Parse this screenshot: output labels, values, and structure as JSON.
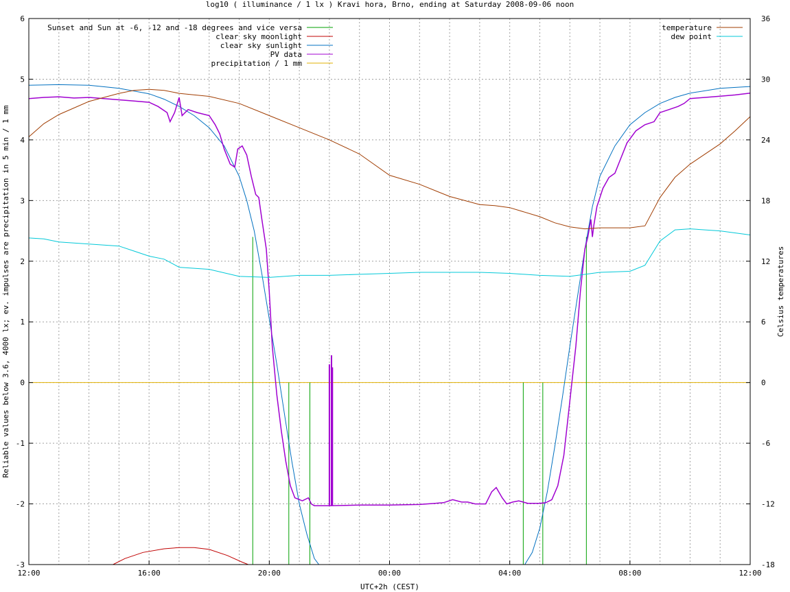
{
  "chart_data": {
    "type": "line",
    "title": "log10 ( illuminance / 1 lx ) Kravi hora, Brno, ending at Saturday 2008-09-06 noon",
    "xlabel": "UTC+2h (CEST)",
    "ylabel": "Reliable values below 3.6, 4000 lx; ev. impulses are precipitation in 5 min / 1 mm",
    "y2label": "Celsius temperatures",
    "x_unit": "hours since 12:00",
    "xlim": [
      0,
      24
    ],
    "ylim": [
      -3,
      6
    ],
    "y2lim": [
      -18,
      36
    ],
    "x_ticks": [
      {
        "x": 0,
        "label": "12:00"
      },
      {
        "x": 4,
        "label": "16:00"
      },
      {
        "x": 8,
        "label": "20:00"
      },
      {
        "x": 12,
        "label": "00:00"
      },
      {
        "x": 16,
        "label": "04:00"
      },
      {
        "x": 20,
        "label": "08:00"
      },
      {
        "x": 24,
        "label": "12:00"
      }
    ],
    "y_ticks": [
      "-3",
      "-2",
      "-1",
      "0",
      "1",
      "2",
      "3",
      "4",
      "5",
      "6"
    ],
    "y2_ticks": [
      "-18",
      "-12",
      "-6",
      "0",
      "6",
      "12",
      "18",
      "24",
      "30",
      "36"
    ],
    "grid": true,
    "legend_left": [
      {
        "label": "Sunset and Sun at -6, -12 and -18 degrees and vice versa",
        "color": "#00a000"
      },
      {
        "label": "clear sky moonlight",
        "color": "#c00000"
      },
      {
        "label": "clear sky sunlight",
        "color": "#0070c0"
      },
      {
        "label": "PV data",
        "color": "#a000d0"
      },
      {
        "label": "precipitation / 1 mm",
        "color": "#e0b000"
      }
    ],
    "legend_right": [
      {
        "label": "temperature",
        "color": "#a03c00"
      },
      {
        "label": "dew point",
        "color": "#00c8d8"
      }
    ],
    "series": [
      {
        "name": "clear sky sunlight",
        "axis": "y",
        "color": "#0070c0",
        "points": [
          [
            0,
            4.9
          ],
          [
            1,
            4.91
          ],
          [
            2,
            4.9
          ],
          [
            3,
            4.85
          ],
          [
            4,
            4.76
          ],
          [
            4.5,
            4.67
          ],
          [
            5,
            4.55
          ],
          [
            5.5,
            4.4
          ],
          [
            6,
            4.2
          ],
          [
            6.5,
            3.9
          ],
          [
            7,
            3.4
          ],
          [
            7.25,
            3.0
          ],
          [
            7.5,
            2.5
          ],
          [
            7.75,
            1.8
          ],
          [
            8,
            1.05
          ],
          [
            8.25,
            0.3
          ],
          [
            8.5,
            -0.5
          ],
          [
            8.75,
            -1.3
          ],
          [
            9,
            -2.0
          ],
          [
            9.25,
            -2.5
          ],
          [
            9.5,
            -2.9
          ],
          [
            9.65,
            -3.0
          ],
          [
            16.5,
            -3.0
          ],
          [
            16.75,
            -2.8
          ],
          [
            17,
            -2.4
          ],
          [
            17.25,
            -1.8
          ],
          [
            17.5,
            -1.05
          ],
          [
            17.75,
            -0.25
          ],
          [
            18,
            0.6
          ],
          [
            18.25,
            1.4
          ],
          [
            18.5,
            2.2
          ],
          [
            18.75,
            2.9
          ],
          [
            19,
            3.4
          ],
          [
            19.5,
            3.9
          ],
          [
            20,
            4.25
          ],
          [
            20.5,
            4.45
          ],
          [
            21,
            4.6
          ],
          [
            21.5,
            4.7
          ],
          [
            22,
            4.77
          ],
          [
            23,
            4.85
          ],
          [
            24,
            4.88
          ]
        ]
      },
      {
        "name": "clear sky moonlight",
        "axis": "y",
        "color": "#c00000",
        "points": [
          [
            2.8,
            -3.0
          ],
          [
            3.2,
            -2.9
          ],
          [
            3.8,
            -2.8
          ],
          [
            4.5,
            -2.74
          ],
          [
            5,
            -2.72
          ],
          [
            5.5,
            -2.72
          ],
          [
            6,
            -2.75
          ],
          [
            6.6,
            -2.85
          ],
          [
            7.1,
            -2.96
          ],
          [
            7.3,
            -3.0
          ]
        ]
      },
      {
        "name": "PV data",
        "axis": "y",
        "color": "#a000d0",
        "points": [
          [
            0,
            4.68
          ],
          [
            0.5,
            4.7
          ],
          [
            1,
            4.71
          ],
          [
            1.5,
            4.69
          ],
          [
            2,
            4.7
          ],
          [
            2.5,
            4.68
          ],
          [
            3,
            4.66
          ],
          [
            3.5,
            4.64
          ],
          [
            4,
            4.62
          ],
          [
            4.3,
            4.55
          ],
          [
            4.6,
            4.45
          ],
          [
            4.7,
            4.3
          ],
          [
            4.85,
            4.45
          ],
          [
            5,
            4.7
          ],
          [
            5.1,
            4.4
          ],
          [
            5.3,
            4.5
          ],
          [
            5.6,
            4.45
          ],
          [
            6,
            4.4
          ],
          [
            6.2,
            4.25
          ],
          [
            6.35,
            4.1
          ],
          [
            6.5,
            3.85
          ],
          [
            6.7,
            3.6
          ],
          [
            6.85,
            3.55
          ],
          [
            6.95,
            3.85
          ],
          [
            7.1,
            3.9
          ],
          [
            7.25,
            3.75
          ],
          [
            7.4,
            3.4
          ],
          [
            7.55,
            3.1
          ],
          [
            7.65,
            3.05
          ],
          [
            7.75,
            2.7
          ],
          [
            7.9,
            2.2
          ],
          [
            8,
            1.5
          ],
          [
            8.1,
            0.6
          ],
          [
            8.25,
            -0.2
          ],
          [
            8.4,
            -0.8
          ],
          [
            8.55,
            -1.3
          ],
          [
            8.7,
            -1.7
          ],
          [
            8.85,
            -1.9
          ],
          [
            9.1,
            -1.95
          ],
          [
            9.3,
            -1.9
          ],
          [
            9.4,
            -2.0
          ],
          [
            9.5,
            -2.03
          ],
          [
            10,
            -2.03
          ],
          [
            11,
            -2.02
          ],
          [
            12,
            -2.02
          ],
          [
            13,
            -2.01
          ],
          [
            13.8,
            -1.98
          ],
          [
            14.1,
            -1.93
          ],
          [
            14.4,
            -1.97
          ],
          [
            14.6,
            -1.97
          ],
          [
            14.85,
            -2.0
          ],
          [
            15.2,
            -2.0
          ],
          [
            15.4,
            -1.8
          ],
          [
            15.55,
            -1.73
          ],
          [
            15.75,
            -1.9
          ],
          [
            15.9,
            -2.0
          ],
          [
            16.1,
            -1.97
          ],
          [
            16.3,
            -1.95
          ],
          [
            16.6,
            -1.99
          ],
          [
            17,
            -1.99
          ],
          [
            17.2,
            -1.98
          ],
          [
            17.4,
            -1.93
          ],
          [
            17.6,
            -1.7
          ],
          [
            17.8,
            -1.2
          ],
          [
            18,
            -0.3
          ],
          [
            18.2,
            0.6
          ],
          [
            18.35,
            1.5
          ],
          [
            18.5,
            2.2
          ],
          [
            18.6,
            2.4
          ],
          [
            18.7,
            2.69
          ],
          [
            18.75,
            2.4
          ],
          [
            18.8,
            2.6
          ],
          [
            18.9,
            2.9
          ],
          [
            19.1,
            3.2
          ],
          [
            19.3,
            3.38
          ],
          [
            19.5,
            3.45
          ],
          [
            19.7,
            3.7
          ],
          [
            19.9,
            3.95
          ],
          [
            20.2,
            4.15
          ],
          [
            20.5,
            4.25
          ],
          [
            20.8,
            4.3
          ],
          [
            21,
            4.45
          ],
          [
            21.3,
            4.5
          ],
          [
            21.6,
            4.55
          ],
          [
            21.8,
            4.6
          ],
          [
            22,
            4.68
          ],
          [
            22.5,
            4.7
          ],
          [
            23,
            4.72
          ],
          [
            23.5,
            4.74
          ],
          [
            24,
            4.77
          ]
        ]
      },
      {
        "name": "temperature",
        "axis": "y2",
        "color": "#a03c00",
        "points": [
          [
            0,
            24.3
          ],
          [
            0.5,
            25.6
          ],
          [
            1,
            26.5
          ],
          [
            2,
            27.8
          ],
          [
            3,
            28.6
          ],
          [
            3.5,
            28.9
          ],
          [
            4,
            29.0
          ],
          [
            4.5,
            28.9
          ],
          [
            5,
            28.6
          ],
          [
            6,
            28.3
          ],
          [
            7,
            27.6
          ],
          [
            8,
            26.4
          ],
          [
            9,
            25.2
          ],
          [
            10,
            24.0
          ],
          [
            11,
            22.6
          ],
          [
            12,
            20.5
          ],
          [
            13,
            19.6
          ],
          [
            14,
            18.4
          ],
          [
            15,
            17.6
          ],
          [
            15.5,
            17.5
          ],
          [
            16,
            17.3
          ],
          [
            17,
            16.4
          ],
          [
            17.5,
            15.8
          ],
          [
            18,
            15.4
          ],
          [
            18.5,
            15.2
          ],
          [
            19,
            15.3
          ],
          [
            20,
            15.3
          ],
          [
            20.5,
            15.5
          ],
          [
            21,
            18.3
          ],
          [
            21.5,
            20.3
          ],
          [
            22,
            21.6
          ],
          [
            23,
            23.6
          ],
          [
            23.5,
            24.9
          ],
          [
            24,
            26.3
          ]
        ]
      },
      {
        "name": "dew point",
        "axis": "y2",
        "color": "#00c8d8",
        "points": [
          [
            0,
            14.3
          ],
          [
            0.5,
            14.2
          ],
          [
            1,
            13.9
          ],
          [
            2,
            13.7
          ],
          [
            3,
            13.5
          ],
          [
            3.5,
            13.0
          ],
          [
            4,
            12.5
          ],
          [
            4.5,
            12.2
          ],
          [
            5,
            11.4
          ],
          [
            6,
            11.2
          ],
          [
            7,
            10.5
          ],
          [
            8,
            10.4
          ],
          [
            9,
            10.6
          ],
          [
            10,
            10.6
          ],
          [
            11,
            10.7
          ],
          [
            12,
            10.8
          ],
          [
            13,
            10.9
          ],
          [
            14,
            10.9
          ],
          [
            15,
            10.9
          ],
          [
            16,
            10.8
          ],
          [
            17,
            10.6
          ],
          [
            18,
            10.5
          ],
          [
            19,
            10.9
          ],
          [
            20,
            11.0
          ],
          [
            20.5,
            11.6
          ],
          [
            21,
            14.0
          ],
          [
            21.5,
            15.1
          ],
          [
            22,
            15.2
          ],
          [
            23,
            15.0
          ],
          [
            24,
            14.6
          ]
        ]
      }
    ],
    "green_impulses_x": [
      7.45,
      8.65,
      9.35,
      16.45,
      17.1,
      18.55
    ],
    "precipitation_impulses": [
      {
        "x": 10.0,
        "value": 0.3
      },
      {
        "x": 10.07,
        "value": 0.45
      },
      {
        "x": 10.1,
        "value": 0.25
      }
    ],
    "precipitation_baseline": 0
  }
}
